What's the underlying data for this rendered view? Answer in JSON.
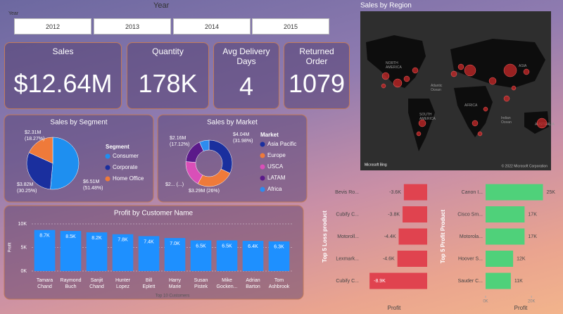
{
  "year_slicer": {
    "title": "Year",
    "label": "Year",
    "options": [
      "2012",
      "2013",
      "2014",
      "2015"
    ]
  },
  "cards": [
    {
      "title": "Sales",
      "value": "$12.64M"
    },
    {
      "title": "Quantity",
      "value": "178K"
    },
    {
      "title": "Avg Delivery Days",
      "value": "4"
    },
    {
      "title": "Returned Order",
      "value": "1079"
    }
  ],
  "map": {
    "title": "Sales by Region",
    "labels": [
      "NORTH AMERICA",
      "ASIA",
      "Atlantic Ocean",
      "SOUTH AMERICA",
      "AFRICA",
      "Indian Ocean",
      "AUSTRALIA"
    ],
    "provider": "Microsoft Bing",
    "attribution": "© 2022 Microsoft Corporation"
  },
  "chart_data": [
    {
      "type": "pie",
      "title": "Sales by Segment",
      "legend_title": "Segment",
      "legend": "right",
      "categories": [
        "Consumer",
        "Corporate",
        "Home Office"
      ],
      "values": [
        51.48,
        30.25,
        18.27
      ],
      "value_labels": [
        "$6.51M (51.48%)",
        "$3.82M (30.25%)",
        "$2.31M (18.27%)"
      ],
      "colors": [
        "#1e8ff0",
        "#1a2f9e",
        "#ef7a3a"
      ]
    },
    {
      "type": "donut",
      "title": "Sales by Market",
      "legend_title": "Market",
      "legend": "right",
      "categories": [
        "Asia Pacific",
        "Europe",
        "USCA",
        "LATAM",
        "Africa"
      ],
      "values": [
        31.98,
        26,
        18.2,
        17.12,
        6.7
      ],
      "value_labels": [
        "$4.04M (31.98%)",
        "$3.29M (26%)",
        "$2... (...)",
        "$2.16M (17.12%)",
        null
      ],
      "colors": [
        "#1a2f9e",
        "#ef7a3a",
        "#d94fb8",
        "#5b1a8a",
        "#2d8cf0"
      ]
    },
    {
      "type": "bar",
      "title": "Profit by Customer Name",
      "y_label": "Profit",
      "x_label": "Top 10 Customers",
      "color": "#1e90ff",
      "categories": [
        "Tamara Chand",
        "Raymond Buch",
        "Sanjit Chand",
        "Hunter Lopez",
        "Bill Eplett",
        "Harry Marie",
        "Susan Pistek",
        "Mike Gocken...",
        "Adrian Barton",
        "Tom Ashbrook"
      ],
      "values": [
        8700,
        8500,
        8200,
        7800,
        7400,
        7000,
        6500,
        6500,
        6400,
        6300
      ],
      "value_labels": [
        "8.7K",
        "8.5K",
        "8.2K",
        "7.8K",
        "7.4K",
        "7.0K",
        "6.5K",
        "6.5K",
        "6.4K",
        "6.3K"
      ],
      "ylim": [
        0,
        10000
      ],
      "yticks": [
        {
          "value": 0,
          "label": "0K"
        },
        {
          "value": 5000,
          "label": "5K"
        },
        {
          "value": 10000,
          "label": "10K"
        }
      ]
    },
    {
      "type": "hbar",
      "y_label": "Top 5 Loss product",
      "x_label": "Profit",
      "color": "#e0434f",
      "categories": [
        "Bevis Ro...",
        "Cubify C...",
        "Motoroll...",
        "Lexmark...",
        "Cubify C..."
      ],
      "values": [
        -3600,
        -3800,
        -4400,
        -4600,
        -8900
      ],
      "value_labels": [
        "-3.6K",
        "-3.8K",
        "-4.4K",
        "-4.6K",
        "-8.9K"
      ],
      "xlim": [
        -10000,
        0
      ]
    },
    {
      "type": "hbar",
      "y_label": "Top 5 Profit Product",
      "x_label": "Profit",
      "color": "#4fd17a",
      "categories": [
        "Canon I...",
        "Cisco Sm...",
        "Motorola...",
        "Hoover S...",
        "Sauder C..."
      ],
      "values": [
        25000,
        17000,
        17000,
        12000,
        11000
      ],
      "value_labels": [
        "25K",
        "17K",
        "17K",
        "12K",
        "11K"
      ],
      "xlim": [
        0,
        27000
      ],
      "xticks": [
        {
          "value": 0,
          "label": "0K"
        },
        {
          "value": 20000,
          "label": "20K"
        }
      ]
    }
  ]
}
